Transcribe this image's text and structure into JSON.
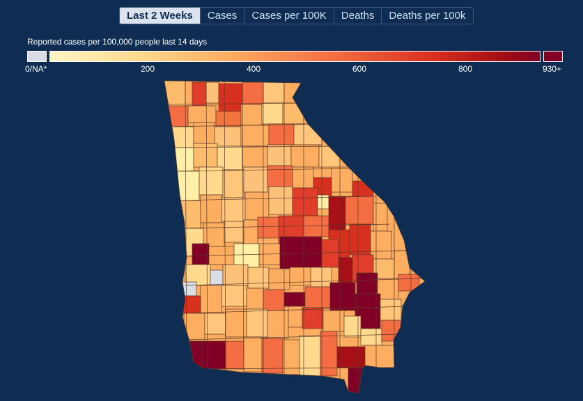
{
  "tabs": [
    {
      "label": "Last 2 Weeks",
      "active": true
    },
    {
      "label": "Cases",
      "active": false
    },
    {
      "label": "Cases per 100K",
      "active": false
    },
    {
      "label": "Deaths",
      "active": false
    },
    {
      "label": "Deaths per 100k",
      "active": false
    }
  ],
  "legend": {
    "title": "Reported cases per 100,000 people last 14 days",
    "na_label": "0/NA*",
    "ticks": [
      "200",
      "400",
      "600",
      "800"
    ],
    "max_label": "930+",
    "scale_min": 0,
    "scale_max": 930
  },
  "colors": {
    "background": "#0f2d52",
    "na": "#d8dde6",
    "ramp": [
      "#fff6c4",
      "#fed98e",
      "#fdae61",
      "#f46d43",
      "#d7301f",
      "#a50f15",
      "#800026"
    ]
  }
}
